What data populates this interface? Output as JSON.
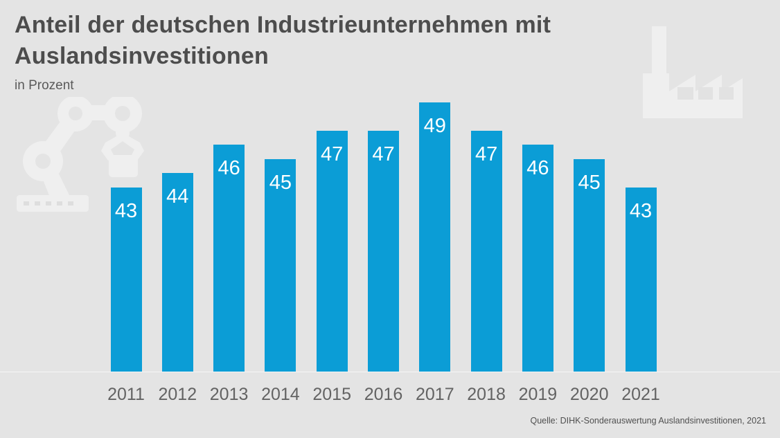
{
  "header": {
    "subtitle": "in Prozent"
  },
  "chart_data": {
    "type": "bar",
    "title": "Anteil der deutschen Industrieunternehmen mit Auslandsinvestitionen",
    "subtitle": "in Prozent",
    "categories": [
      "2011",
      "2012",
      "2013",
      "2014",
      "2015",
      "2016",
      "2017",
      "2018",
      "2019",
      "2020",
      "2021"
    ],
    "values": [
      43,
      44,
      46,
      45,
      47,
      47,
      49,
      47,
      46,
      45,
      43
    ],
    "value_labels": [
      "43",
      "44",
      "46",
      "45",
      "47",
      "47",
      "49",
      "47",
      "46",
      "45",
      "43"
    ],
    "xlabel": "",
    "ylabel": "in Prozent",
    "ylim": [
      30,
      50
    ],
    "grid": false,
    "legend": "none",
    "bar_color": "#0b9dd6",
    "value_label_color": "#ffffff",
    "axis_label_color": "#636363"
  },
  "footer": {
    "source": "Quelle: DIHK-Sonderauswertung Auslandsinvestitionen, 2021"
  },
  "colors": {
    "background": "#e4e4e4",
    "accent_blue": "#0b9dd6",
    "title_text": "#4d4d4d",
    "decor_icon": "#efefef",
    "decor_cutout": "#e0e0e0"
  },
  "icons": {
    "top_right": "factory-icon",
    "left": "robot-arm-icon"
  }
}
